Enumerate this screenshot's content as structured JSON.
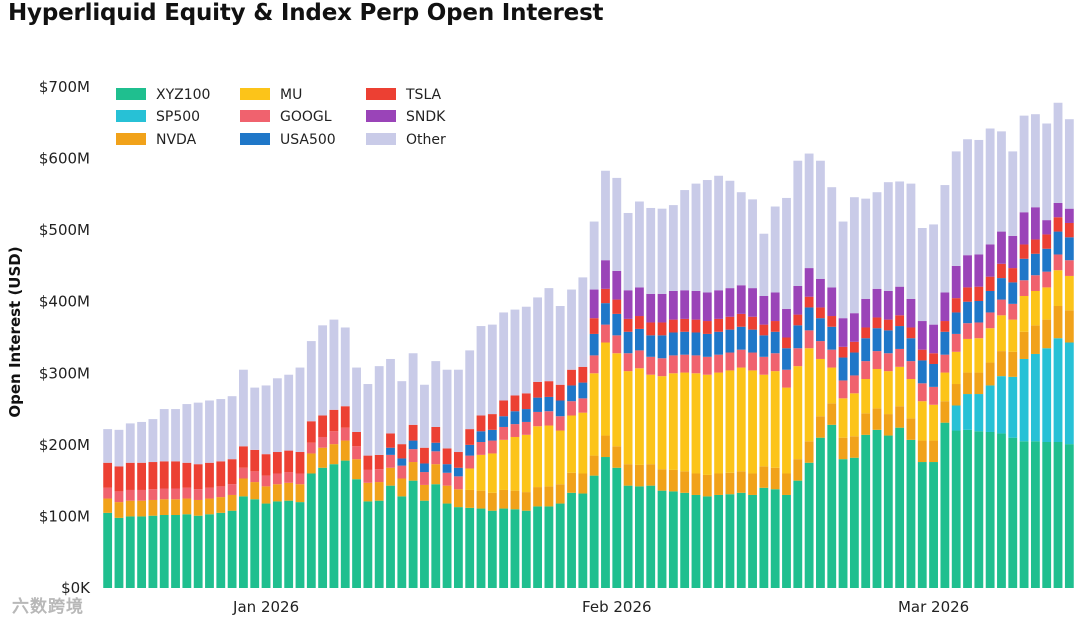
{
  "title": "Hyperliquid Equity & Index Perp Open Interest",
  "watermark": "六数跨境",
  "chart_data": {
    "type": "bar",
    "stacked": true,
    "ylabel": "Open Interest (USD)",
    "ylim": [
      0,
      700
    ],
    "y_ticks": [
      "$0K",
      "$100M",
      "$200M",
      "$300M",
      "$400M",
      "$500M",
      "$600M",
      "$700M"
    ],
    "x_ticks": [
      {
        "label": "Jan 2026",
        "bar_index": 14
      },
      {
        "label": "Feb 2026",
        "bar_index": 45
      },
      {
        "label": "Mar 2026",
        "bar_index": 73
      }
    ],
    "legend_position": "top-left",
    "grid": false,
    "units": "millions USD",
    "series": [
      {
        "name": "XYZ100",
        "color": "#1fbf8f",
        "values": [
          105,
          98,
          100,
          100,
          101,
          102,
          102,
          103,
          101,
          103,
          105,
          108,
          128,
          124,
          118,
          121,
          122,
          120,
          160,
          168,
          173,
          178,
          152,
          121,
          122,
          143,
          128,
          150,
          122,
          145,
          118,
          113,
          112,
          111,
          108,
          111,
          110,
          108,
          114,
          114,
          118,
          133,
          132,
          157,
          183,
          168,
          143,
          142,
          143,
          136,
          135,
          133,
          130,
          128,
          130,
          131,
          133,
          130,
          140,
          138,
          130,
          150,
          175,
          210,
          228,
          180,
          182,
          214,
          221,
          213,
          224,
          207,
          176,
          176,
          231,
          220,
          221,
          219,
          218,
          216,
          210,
          205,
          205,
          204,
          204,
          201
        ]
      },
      {
        "name": "SP500",
        "color": "#27c1d6",
        "values": [
          0,
          0,
          0,
          0,
          0,
          0,
          0,
          0,
          0,
          0,
          0,
          0,
          0,
          0,
          0,
          0,
          0,
          0,
          0,
          0,
          0,
          0,
          0,
          0,
          0,
          0,
          0,
          0,
          0,
          0,
          0,
          0,
          0,
          0,
          0,
          0,
          0,
          0,
          0,
          0,
          0,
          0,
          0,
          0,
          0,
          0,
          0,
          0,
          0,
          0,
          0,
          0,
          0,
          0,
          0,
          0,
          0,
          0,
          0,
          0,
          0,
          0,
          0,
          0,
          0,
          0,
          0,
          0,
          0,
          0,
          0,
          0,
          0,
          0,
          0,
          35,
          50,
          52,
          65,
          80,
          85,
          115,
          122,
          131,
          145,
          142
        ]
      },
      {
        "name": "NVDA",
        "color": "#f1a21a",
        "values": [
          20,
          22,
          22,
          22,
          22,
          22,
          22,
          22,
          22,
          22,
          22,
          22,
          25,
          24,
          24,
          24,
          25,
          25,
          28,
          28,
          28,
          28,
          28,
          26,
          26,
          25,
          25,
          26,
          22,
          28,
          25,
          25,
          25,
          25,
          25,
          26,
          26,
          26,
          27,
          28,
          27,
          28,
          28,
          28,
          30,
          30,
          30,
          30,
          30,
          30,
          30,
          30,
          30,
          30,
          30,
          30,
          30,
          30,
          30,
          30,
          30,
          30,
          30,
          30,
          30,
          30,
          30,
          30,
          30,
          30,
          30,
          30,
          30,
          30,
          30,
          30,
          30,
          30,
          32,
          35,
          35,
          38,
          40,
          40,
          45,
          45
        ]
      },
      {
        "name": "MU",
        "color": "#fcc419",
        "values": [
          0,
          0,
          0,
          0,
          0,
          0,
          0,
          0,
          0,
          0,
          0,
          0,
          0,
          0,
          0,
          0,
          0,
          0,
          0,
          0,
          0,
          0,
          0,
          0,
          0,
          0,
          0,
          0,
          0,
          0,
          0,
          0,
          30,
          50,
          55,
          70,
          75,
          80,
          85,
          85,
          75,
          80,
          85,
          115,
          130,
          130,
          130,
          135,
          125,
          130,
          135,
          138,
          140,
          140,
          141,
          143,
          145,
          144,
          128,
          135,
          120,
          130,
          130,
          80,
          50,
          55,
          60,
          48,
          55,
          60,
          55,
          55,
          55,
          50,
          40,
          45,
          47,
          48,
          48,
          50,
          45,
          50,
          48,
          45,
          50,
          48
        ]
      },
      {
        "name": "GOOGL",
        "color": "#f0626e",
        "values": [
          15,
          15,
          15,
          15,
          15,
          15,
          15,
          15,
          15,
          15,
          15,
          15,
          15,
          15,
          15,
          15,
          15,
          15,
          15,
          15,
          18,
          18,
          18,
          18,
          18,
          18,
          18,
          18,
          18,
          18,
          18,
          18,
          18,
          18,
          18,
          18,
          18,
          18,
          20,
          20,
          20,
          20,
          20,
          25,
          25,
          25,
          25,
          25,
          25,
          25,
          25,
          25,
          25,
          25,
          25,
          25,
          25,
          25,
          25,
          25,
          25,
          25,
          25,
          25,
          25,
          25,
          25,
          25,
          25,
          25,
          25,
          25,
          25,
          25,
          25,
          25,
          22,
          22,
          22,
          22,
          22,
          22,
          22,
          22,
          22,
          22
        ]
      },
      {
        "name": "USA500",
        "color": "#1f77c8",
        "values": [
          0,
          0,
          0,
          0,
          0,
          0,
          0,
          0,
          0,
          0,
          0,
          0,
          0,
          0,
          0,
          0,
          0,
          0,
          0,
          0,
          0,
          0,
          0,
          0,
          0,
          10,
          10,
          12,
          12,
          12,
          12,
          12,
          15,
          15,
          15,
          15,
          18,
          18,
          20,
          20,
          22,
          22,
          22,
          30,
          30,
          30,
          30,
          30,
          30,
          32,
          32,
          32,
          32,
          32,
          32,
          32,
          32,
          32,
          30,
          30,
          30,
          32,
          32,
          32,
          32,
          32,
          32,
          32,
          32,
          32,
          32,
          32,
          32,
          32,
          32,
          30,
          30,
          30,
          30,
          30,
          30,
          30,
          30,
          32,
          32,
          32
        ]
      },
      {
        "name": "TSLA",
        "color": "#ec4033",
        "values": [
          35,
          35,
          38,
          38,
          38,
          38,
          38,
          35,
          35,
          35,
          35,
          35,
          30,
          30,
          30,
          30,
          30,
          30,
          30,
          30,
          30,
          30,
          20,
          20,
          20,
          20,
          20,
          22,
          22,
          22,
          22,
          22,
          22,
          22,
          22,
          22,
          22,
          22,
          22,
          22,
          22,
          22,
          22,
          22,
          20,
          20,
          18,
          18,
          18,
          18,
          18,
          18,
          18,
          18,
          18,
          18,
          18,
          18,
          15,
          15,
          15,
          15,
          15,
          15,
          15,
          15,
          15,
          15,
          15,
          15,
          15,
          15,
          15,
          15,
          15,
          20,
          20,
          20,
          20,
          20,
          20,
          20,
          20,
          20,
          20,
          20
        ]
      },
      {
        "name": "SNDK",
        "color": "#9a44b8",
        "values": [
          0,
          0,
          0,
          0,
          0,
          0,
          0,
          0,
          0,
          0,
          0,
          0,
          0,
          0,
          0,
          0,
          0,
          0,
          0,
          0,
          0,
          0,
          0,
          0,
          0,
          0,
          0,
          0,
          0,
          0,
          0,
          0,
          0,
          0,
          0,
          0,
          0,
          0,
          0,
          0,
          0,
          0,
          0,
          40,
          40,
          40,
          40,
          40,
          40,
          40,
          40,
          40,
          40,
          40,
          40,
          40,
          40,
          40,
          40,
          40,
          40,
          40,
          40,
          40,
          40,
          40,
          40,
          40,
          40,
          40,
          40,
          40,
          40,
          40,
          40,
          45,
          45,
          45,
          45,
          45,
          45,
          45,
          45,
          20,
          20,
          20
        ]
      },
      {
        "name": "Other",
        "color": "#c9cbe8",
        "values": [
          47,
          51,
          55,
          57,
          60,
          73,
          73,
          82,
          86,
          87,
          87,
          88,
          107,
          87,
          96,
          103,
          106,
          118,
          112,
          126,
          126,
          110,
          90,
          100,
          124,
          104,
          88,
          100,
          88,
          92,
          110,
          115,
          110,
          125,
          125,
          123,
          120,
          121,
          118,
          130,
          110,
          112,
          125,
          95,
          125,
          130,
          108,
          120,
          120,
          119,
          120,
          140,
          150,
          157,
          160,
          150,
          130,
          124,
          87,
          120,
          155,
          175,
          160,
          165,
          140,
          135,
          162,
          140,
          135,
          152,
          147,
          161,
          130,
          140,
          150,
          160,
          162,
          160,
          162,
          140,
          118,
          135,
          130,
          135,
          140,
          125
        ]
      }
    ]
  }
}
